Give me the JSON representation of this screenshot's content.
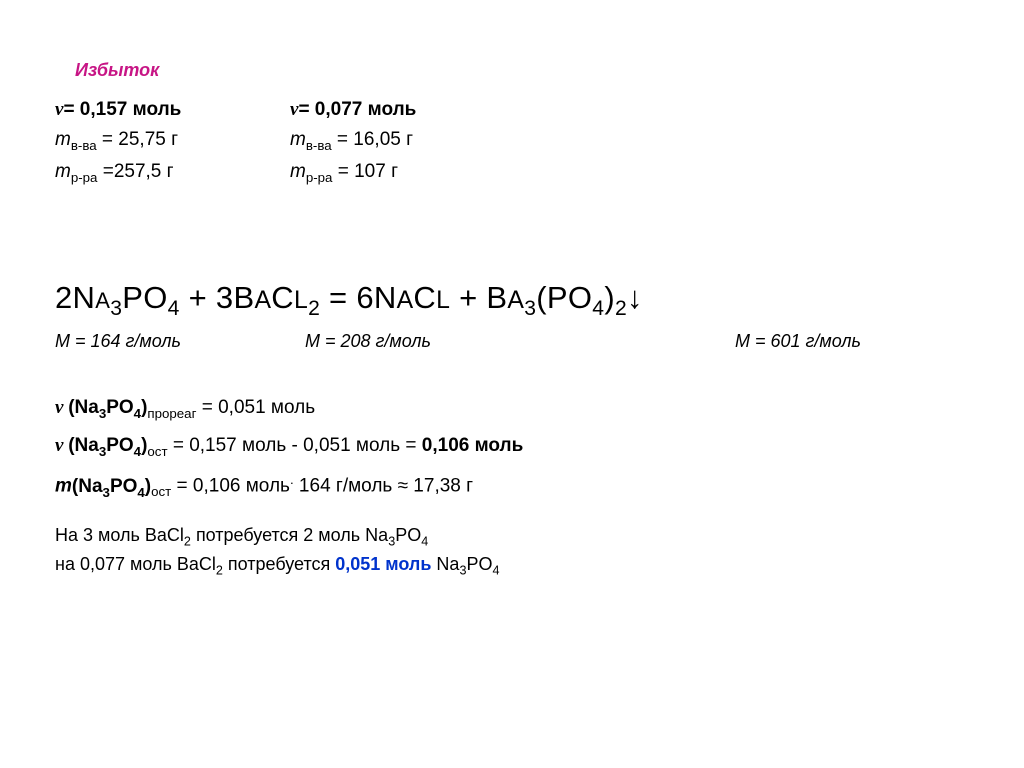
{
  "header": {
    "excess_label": "Избыток"
  },
  "reactant1": {
    "nu_value": "= 0,157 моль",
    "m_substance": "= 25,75 г",
    "m_solution": "=257,5 г"
  },
  "reactant2": {
    "nu_value": "= 0,077 моль",
    "m_substance": "= 16,05 г",
    "m_solution": "= 107 г"
  },
  "labels": {
    "m_vva": "в-ва",
    "m_rra": "р-ра"
  },
  "equation": {
    "coef1": "2",
    "formula1": "Na",
    "f1_sub1": "3",
    "f1_mid": "PO",
    "f1_sub2": "4",
    "plus1": " + ",
    "coef2": "3",
    "f2_a": "B",
    "f2_b": "AC",
    "f2_c": "L",
    "f2_sub": "2",
    "eq": " = ",
    "coef3": "6",
    "f3_a": "N",
    "f3_b": "AC",
    "f3_c": "L",
    "plus2": " + ",
    "f4_a": "B",
    "f4_b": "A",
    "f4_sub1": "3",
    "f4_mid": "(PO",
    "f4_sub2": "4",
    "f4_close": ")",
    "f4_sub3": "2"
  },
  "molar_masses": {
    "m1": "= 164 г/моль",
    "m2": "= 208 г/моль",
    "m3": "= 601 г/моль"
  },
  "calculations": {
    "line1_suffix": "прореаг",
    "line1_value": "= 0,051 моль",
    "line2_suffix": "ост",
    "line2_value": "= 0,157 моль - 0,051 моль = ",
    "line2_result": "0,106 моль",
    "line3_suffix": "ост",
    "line3_middle": "= 0,106 моль",
    "line3_dot": ".",
    "line3_end": " 164 г/моль ≈ 17,38 г"
  },
  "bottom": {
    "line1_a": "На 3 моль BaCl",
    "line1_b": " потребуется 2 моль Na",
    "line1_c": "PO",
    "line2_a": "на  0,077 моль BaCl",
    "line2_b": " потребуется ",
    "line2_c": "0,051 моль",
    "line2_d": " Na",
    "line2_e": "PO"
  }
}
